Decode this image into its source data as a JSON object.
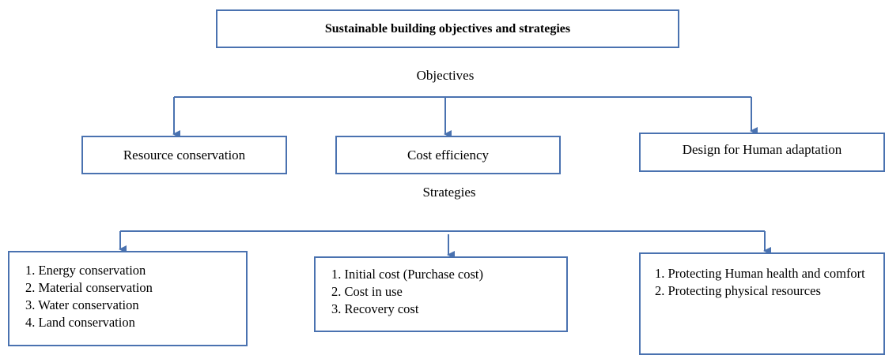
{
  "title": "Sustainable building objectives and strategies",
  "objectives_label": "Objectives",
  "objectives": [
    "Resource conservation",
    "Cost efficiency",
    "Design for Human adaptation"
  ],
  "strategies_label": "Strategies",
  "strategies": [
    {
      "items": [
        "1. Energy conservation",
        "2. Material conservation",
        "3. Water conservation",
        "4. Land conservation"
      ]
    },
    {
      "items": [
        "1. Initial cost (Purchase cost)",
        "2. Cost in use",
        "3. Recovery cost"
      ]
    },
    {
      "items": [
        "1. Protecting Human health and comfort",
        "2. Protecting physical resources"
      ]
    }
  ]
}
